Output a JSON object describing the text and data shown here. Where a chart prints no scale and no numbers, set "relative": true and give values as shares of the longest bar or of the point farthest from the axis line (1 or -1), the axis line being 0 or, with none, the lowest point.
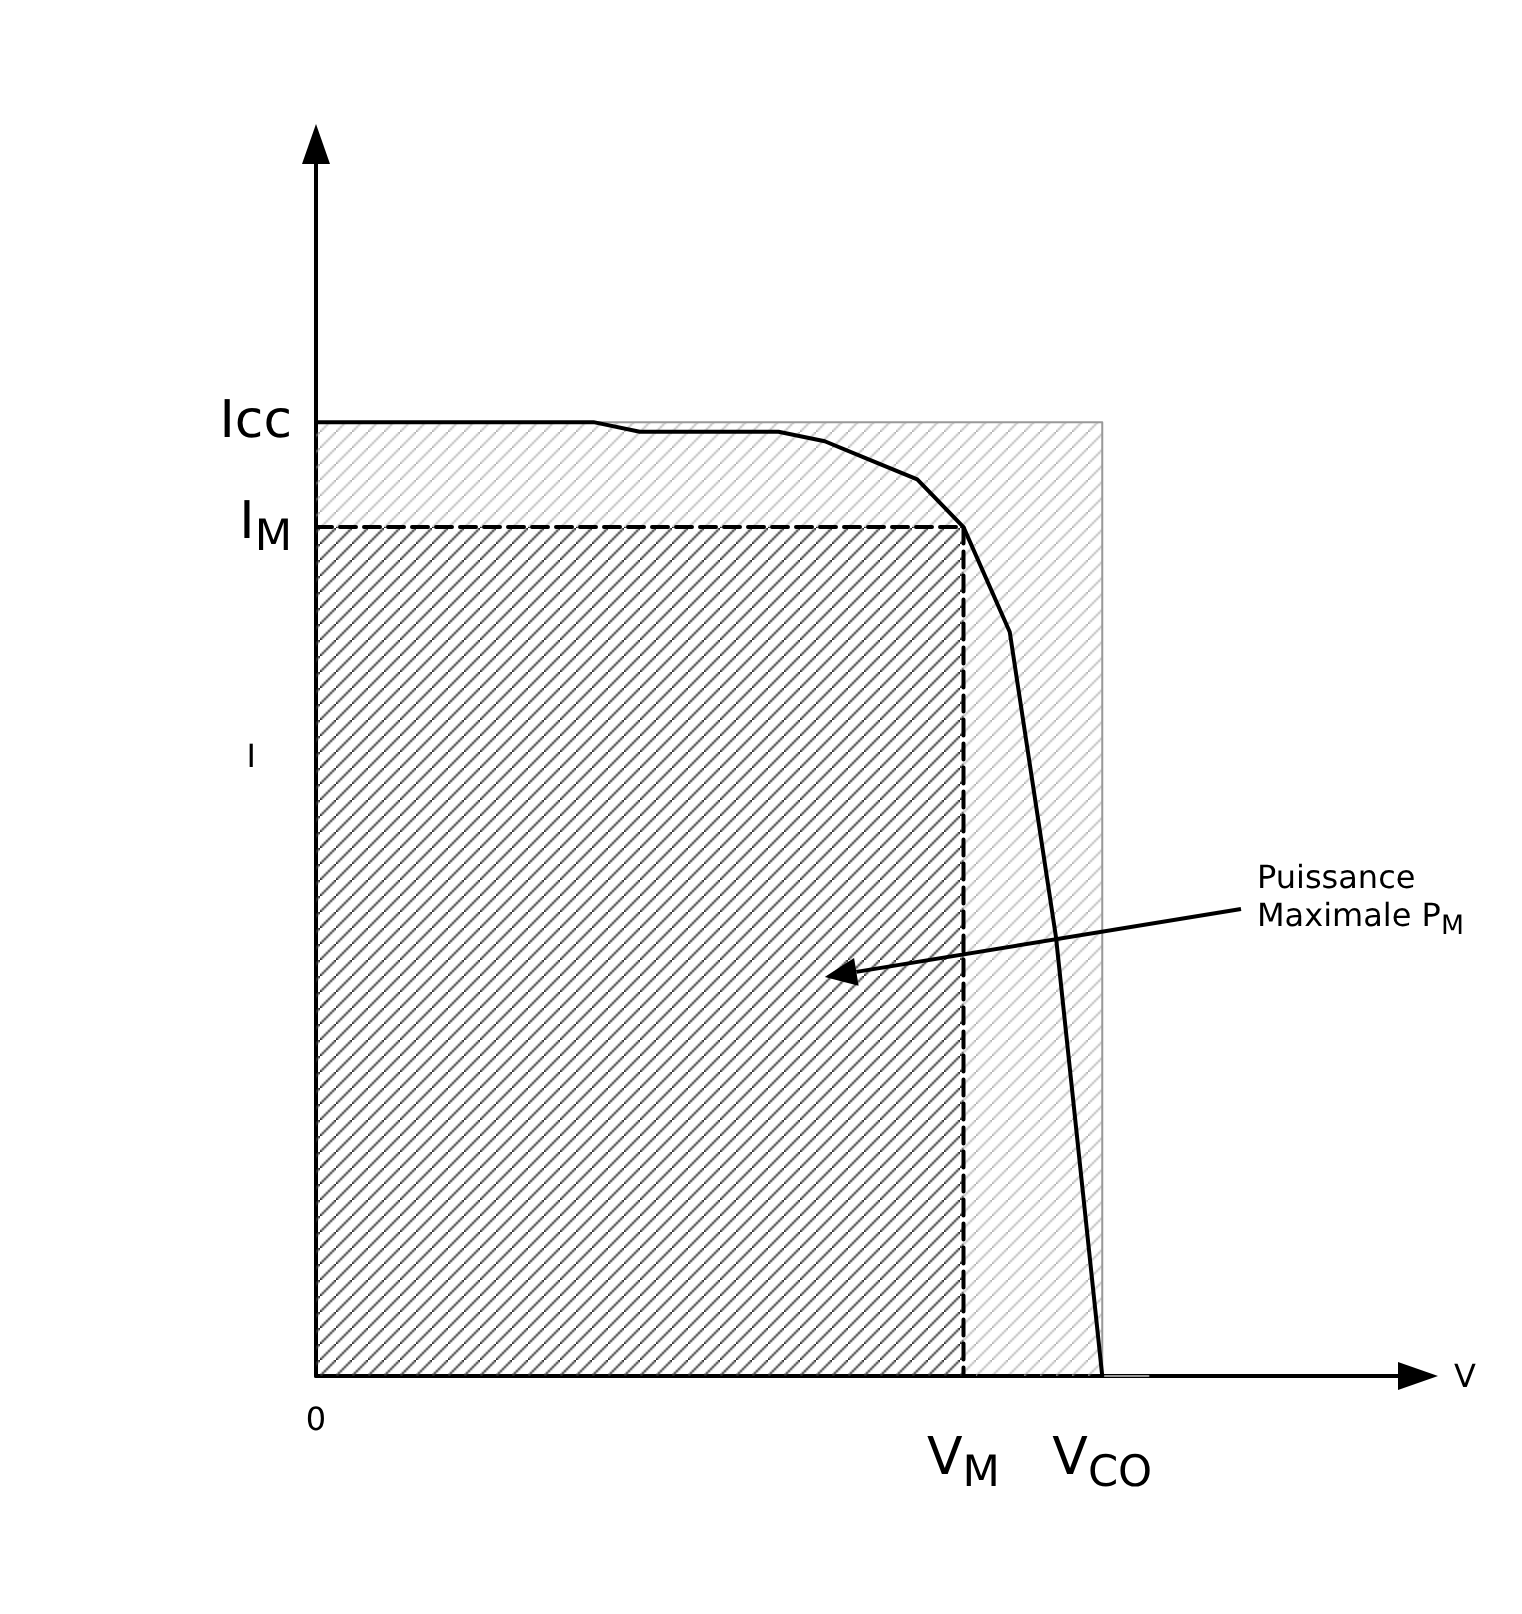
{
  "chart_data": {
    "type": "line",
    "relative": true,
    "xlabel": "V",
    "ylabel": "I",
    "marker": "none",
    "grid": false,
    "categories": [
      "0",
      null,
      null,
      null,
      null,
      null,
      null,
      null,
      null,
      null,
      null,
      null,
      null,
      null,
      "V$_{M}$",
      null,
      null,
      "V$_{CO}$",
      null,
      null,
      null,
      null,
      null,
      null,
      null
    ],
    "series": [
      {
        "type": "line",
        "color": "#000000",
        "values": [
          1,
          1,
          1,
          1,
          1,
          1,
          1,
          0.99,
          0.99,
          0.99,
          0.99,
          0.98,
          0.96,
          0.94,
          0.89,
          0.78,
          0.46,
          0,
          null,
          null,
          null,
          null,
          null,
          null,
          null
        ]
      },
      {
        "type": "area",
        "color": "#000000",
        "line_style": "dashed",
        "values": [
          0.89,
          0.89,
          0.89,
          0.89,
          0.89,
          0.89,
          0.89,
          0.89,
          0.89,
          0.89,
          0.89,
          0.89,
          0.89,
          0.89,
          0.89,
          0,
          null,
          null,
          null,
          null,
          null,
          null,
          null,
          null,
          null
        ]
      },
      {
        "type": "area",
        "color": "#999999",
        "values": [
          1,
          1,
          1,
          1,
          1,
          1,
          1,
          1,
          1,
          1,
          1,
          1,
          1,
          1,
          1,
          1,
          1,
          1,
          0,
          null,
          null,
          null,
          null,
          null,
          null
        ]
      }
    ],
    "annotations": [
      {
        "text": "Icc",
        "x": "0",
        "y": 1
      },
      {
        "text": "I$_{M}$",
        "x": "0",
        "y": 0.89
      },
      "Puissance\nMaximale P$_{M}$"
    ]
  }
}
